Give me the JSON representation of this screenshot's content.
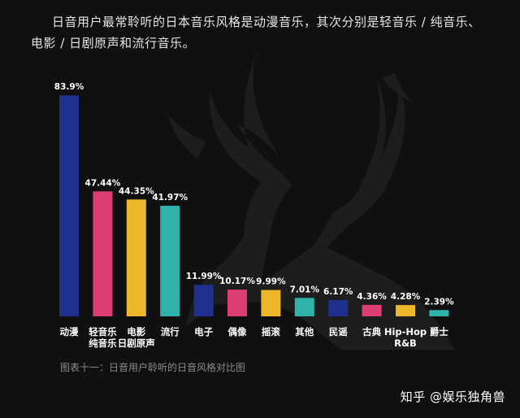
{
  "heading": {
    "line1": "日音用户最常聆听的日本音乐风格是动漫音乐，其次分别是轻音乐 / 纯音乐、",
    "line2": "电影 / 日剧原声和流行音乐。"
  },
  "caption": "图表十一：日音用户聆听的日音风格对比图",
  "watermark": "知乎 @娱乐独角兽",
  "chart_data": {
    "type": "bar",
    "categories": [
      "动漫",
      "轻音乐\n纯音乐",
      "电影\n日剧原声",
      "流行",
      "电子",
      "偶像",
      "摇滚",
      "其他",
      "民谣",
      "古典",
      "Hip-Hop\nR&B",
      "爵士"
    ],
    "values": [
      83.9,
      47.44,
      44.35,
      41.97,
      11.99,
      10.17,
      9.99,
      7.01,
      6.17,
      4.36,
      4.28,
      2.39
    ],
    "value_labels": [
      "83.9%",
      "47.44%",
      "44.35%",
      "41.97%",
      "11.99%",
      "10.17%",
      "9.99%",
      "7.01%",
      "6.17%",
      "4.36%",
      "4.28%",
      "2.39%"
    ],
    "colors": [
      "#1f2f8c",
      "#dc3d74",
      "#eeb62b",
      "#2fb2ab",
      "#1f2f8c",
      "#dc3d74",
      "#eeb62b",
      "#2fb2ab",
      "#1f2f8c",
      "#dc3d74",
      "#eeb62b",
      "#2fb2ab"
    ],
    "ylim": [
      0,
      85.5
    ],
    "grid": false,
    "unit": "%"
  }
}
